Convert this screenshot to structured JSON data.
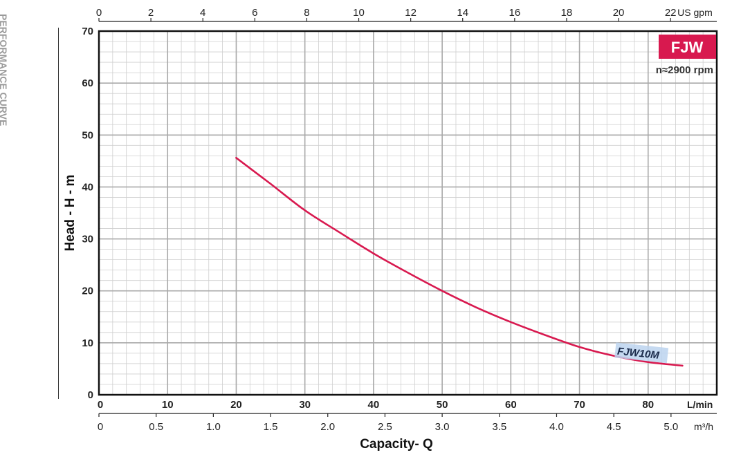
{
  "side_title": "PERFORMANCE CURVE",
  "badge": {
    "text": "FJW",
    "color": "#d8194f"
  },
  "speed_label": "n≈2900 rpm",
  "chart_data": {
    "type": "line",
    "title": "",
    "xlabel": "Capacity- Q",
    "ylabel": "Head - H - m",
    "xlim": [
      0,
      90
    ],
    "ylim": [
      0,
      70
    ],
    "x_unit": "L/min",
    "x_ticks": [
      0,
      10,
      20,
      30,
      40,
      50,
      60,
      70,
      80
    ],
    "y_ticks": [
      0,
      10,
      20,
      30,
      40,
      50,
      60,
      70
    ],
    "secondary_x_top": {
      "unit": "US gpm",
      "ticks": [
        0,
        2,
        4,
        6,
        8,
        10,
        12,
        14,
        16,
        18,
        20,
        22
      ],
      "lim": [
        0,
        23.78
      ]
    },
    "secondary_x_bottom": {
      "unit": "m³/h",
      "ticks": [
        "0",
        "0.5",
        "1.0",
        "1.5",
        "2.0",
        "2.5",
        "3.0",
        "3.5",
        "4.0",
        "4.5",
        "5.0"
      ],
      "lim": [
        0,
        5.4
      ]
    },
    "grid": true,
    "series": [
      {
        "name": "FJW10M",
        "color": "#d8194f",
        "x": [
          20,
          25,
          30,
          35,
          40,
          45,
          50,
          55,
          60,
          65,
          70,
          75,
          80,
          85
        ],
        "y": [
          45.6,
          40.6,
          35.5,
          31.3,
          27.2,
          23.5,
          20.0,
          16.8,
          14.0,
          11.5,
          9.2,
          7.5,
          6.3,
          5.6
        ]
      }
    ]
  }
}
